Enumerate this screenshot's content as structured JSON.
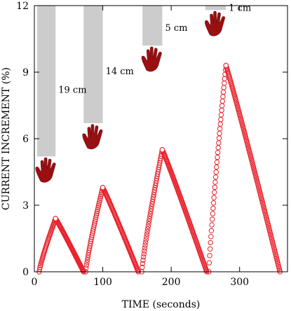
{
  "chart_data": {
    "type": "scatter",
    "title": "",
    "xlabel": "TIME (seconds)",
    "ylabel": "CURRENT INCREMENT (%)",
    "xlim": [
      0,
      370
    ],
    "ylim": [
      0,
      12
    ],
    "xticks": [
      0,
      100,
      200,
      300
    ],
    "yticks": [
      0,
      3,
      6,
      9,
      12
    ],
    "grid": false,
    "legend": "none",
    "series_color": "#e8212b",
    "bar_color": "#cccccc",
    "hand_color": "#9a0f12",
    "series": [
      {
        "peaks": [
          {
            "x": [
              7,
              31,
              72
            ],
            "y": [
              0,
              2.4,
              0
            ]
          },
          {
            "x": [
              75,
              100,
              152
            ],
            "y": [
              0,
              3.8,
              0
            ]
          },
          {
            "x": [
              157,
              187,
              252
            ],
            "y": [
              0,
              5.5,
              0
            ]
          },
          {
            "x": [
              255,
              280,
              359
            ],
            "y": [
              0,
              9.3,
              0
            ]
          }
        ]
      }
    ],
    "annotations": [
      {
        "label": "19 cm",
        "bar_x": [
          4,
          31
        ],
        "bar_bottom_y": 5.2
      },
      {
        "label": "14 cm",
        "bar_x": [
          72,
          100
        ],
        "bar_bottom_y": 6.7
      },
      {
        "label": "5 cm",
        "bar_x": [
          158,
          187
        ],
        "bar_bottom_y": 10.2
      },
      {
        "label": "1 cm",
        "bar_x": [
          250,
          280
        ],
        "bar_bottom_y": 11.8
      }
    ]
  }
}
